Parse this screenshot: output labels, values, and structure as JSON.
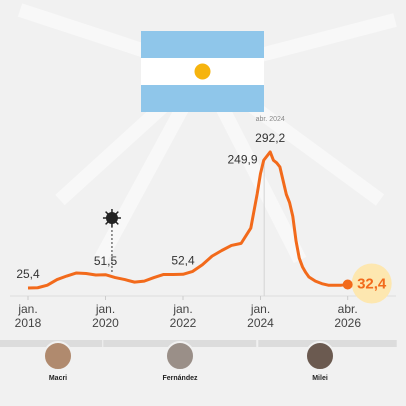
{
  "chart_data": {
    "type": "line",
    "x": [
      "2018-01",
      "2018-04",
      "2018-07",
      "2018-10",
      "2019-01",
      "2019-04",
      "2019-07",
      "2019-10",
      "2020-01",
      "2020-04",
      "2020-07",
      "2020-10",
      "2021-01",
      "2021-04",
      "2021-07",
      "2021-10",
      "2022-01",
      "2022-04",
      "2022-07",
      "2022-10",
      "2023-01",
      "2023-04",
      "2023-07",
      "2023-10",
      "2023-12",
      "2024-01",
      "2024-02",
      "2024-04",
      "2024-05",
      "2024-06",
      "2024-07",
      "2024-08",
      "2024-09",
      "2024-10",
      "2024-11",
      "2024-12",
      "2025-01",
      "2025-02",
      "2025-03",
      "2025-04",
      "2025-06",
      "2025-08",
      "2025-10",
      "2025-12",
      "2026-02",
      "2026-04"
    ],
    "series": [
      {
        "color": "#f26a1b",
        "values": [
          25.4,
          26,
          31,
          42,
          49,
          55,
          54,
          51,
          51.5,
          46,
          42,
          37,
          39,
          46,
          52,
          52,
          52.4,
          58,
          71,
          88,
          99,
          109,
          113,
          143,
          211,
          249.9,
          276,
          292.2,
          276,
          271,
          263,
          236,
          209,
          193,
          166,
          118,
          84,
          67,
          56,
          47,
          39,
          34,
          31,
          31,
          31,
          32.4
        ],
        "value_labels": [
          "25,4",
          null,
          null,
          null,
          null,
          null,
          null,
          null,
          "51,5",
          null,
          null,
          null,
          null,
          null,
          null,
          null,
          "52,4",
          null,
          null,
          null,
          null,
          null,
          null,
          null,
          null,
          "249,9",
          null,
          "292,2",
          null,
          null,
          null,
          null,
          null,
          null,
          null,
          null,
          null,
          null,
          null,
          null,
          null,
          null,
          null,
          null,
          null,
          "32,4"
        ]
      }
    ],
    "ylim": [
      0,
      300
    ],
    "xticks": [
      {
        "value": "2018-01",
        "label": "jan. 2018"
      },
      {
        "value": "2020-01",
        "label": "jan. 2020"
      },
      {
        "value": "2022-01",
        "label": "jan. 2022"
      },
      {
        "value": "2024-01",
        "label": "jan. 2024"
      },
      {
        "value": "2026-04",
        "label": "abr. 2026"
      }
    ],
    "peak_note": {
      "x": "2024-04",
      "label": "abr. 2024"
    },
    "event_x": "2020-03",
    "presidents": [
      {
        "name": "Macri",
        "start": "2018-01",
        "end": "2019-12"
      },
      {
        "name": "Fernández",
        "start": "2019-12",
        "end": "2023-12"
      },
      {
        "name": "Milei",
        "start": "2023-12",
        "end": "2026-04"
      }
    ]
  }
}
